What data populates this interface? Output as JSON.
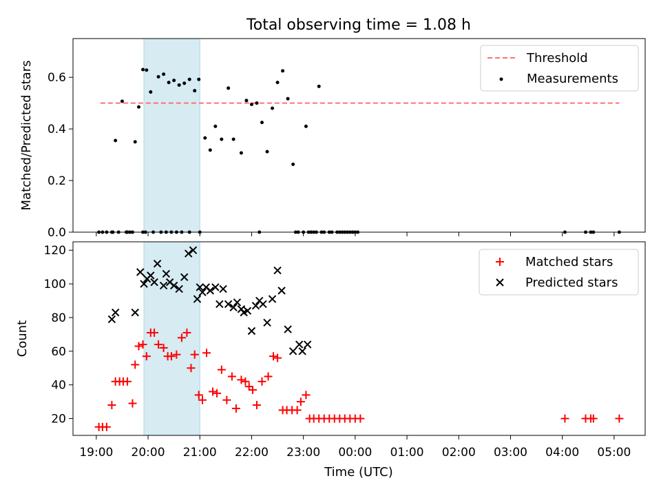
{
  "chart_data": {
    "type": "scatter",
    "title": "Total observing time = 1.08 h",
    "xlabel": "Time (UTC)",
    "x_unit": "hours from 19:00 UTC",
    "xlim": [
      -0.45,
      10.6
    ],
    "xticks": [
      0,
      1,
      2,
      3,
      4,
      5,
      6,
      7,
      8,
      9,
      10
    ],
    "xticklabels": [
      "19:00",
      "20:00",
      "21:00",
      "22:00",
      "23:00",
      "00:00",
      "01:00",
      "02:00",
      "03:00",
      "04:00",
      "05:00"
    ],
    "highlight_span": [
      0.92,
      2.0
    ],
    "colors": {
      "threshold": "#ff7070",
      "measurements": "#000000",
      "matched": "#ff0000",
      "predicted": "#000000",
      "span": "#add8e6"
    },
    "top_panel": {
      "ylabel": "Matched/Predicted stars",
      "ylim": [
        0,
        0.75
      ],
      "yticks": [
        0.0,
        0.2,
        0.4,
        0.6
      ],
      "yticklabels": [
        "0.0",
        "0.2",
        "0.4",
        "0.6"
      ],
      "legend_position": "top-right",
      "threshold": {
        "name": "Threshold",
        "y": 0.5,
        "x_range": [
          0.08,
          10.1
        ]
      },
      "measurements": {
        "name": "Measurements",
        "x": [
          0.05,
          0.12,
          0.2,
          0.3,
          0.37,
          0.5,
          0.58,
          0.65,
          0.75,
          0.82,
          0.9,
          0.97,
          1.05,
          1.2,
          1.3,
          1.4,
          1.5,
          1.6,
          1.7,
          1.8,
          1.9,
          1.98,
          2.1,
          2.2,
          2.3,
          2.42,
          2.55,
          2.65,
          2.8,
          2.9,
          3.0,
          3.1,
          3.2,
          3.3,
          3.4,
          3.5,
          3.6,
          3.7,
          3.8,
          3.9,
          4.05,
          4.3,
          4.8,
          0.32,
          0.43,
          0.9,
          0.95,
          1.1,
          1.25,
          1.35,
          1.45,
          1.55,
          1.65,
          1.8,
          2.0,
          3.15,
          3.85,
          4.0,
          4.1,
          4.2,
          4.35,
          4.5,
          4.65,
          4.75,
          4.85,
          4.95,
          5.05,
          9.05,
          9.45,
          9.55,
          9.6,
          10.1,
          4.15,
          4.25,
          4.4,
          4.55,
          4.7,
          4.9,
          5.0,
          0.6,
          0.7
        ],
        "y": [
          0.0,
          0.0,
          0.0,
          0.0,
          0.355,
          0.507,
          0.0,
          0.0,
          0.35,
          0.485,
          0.63,
          0.628,
          0.543,
          0.602,
          0.612,
          0.58,
          0.588,
          0.57,
          0.577,
          0.592,
          0.548,
          0.592,
          0.365,
          0.318,
          0.41,
          0.36,
          0.558,
          0.36,
          0.307,
          0.51,
          0.495,
          0.5,
          0.425,
          0.312,
          0.48,
          0.58,
          0.625,
          0.517,
          0.263,
          0.0,
          0.41,
          0.565,
          0.0,
          0.0,
          0.0,
          0.0,
          0.0,
          0.0,
          0.0,
          0.0,
          0.0,
          0.0,
          0.0,
          0.0,
          0.0,
          0.0,
          0.0,
          0.0,
          0.0,
          0.0,
          0.0,
          0.0,
          0.0,
          0.0,
          0.0,
          0.0,
          0.0,
          0.0,
          0.0,
          0.0,
          0.0,
          0.0,
          0.0,
          0.0,
          0.0,
          0.0,
          0.0,
          0.0,
          0.0,
          0.0,
          0.0
        ]
      }
    },
    "bottom_panel": {
      "ylabel": "Count",
      "ylim": [
        10,
        125
      ],
      "yticks": [
        20,
        40,
        60,
        80,
        100,
        120
      ],
      "yticklabels": [
        "20",
        "40",
        "60",
        "80",
        "100",
        "120"
      ],
      "legend_position": "top-right",
      "series": [
        {
          "name": "Matched stars",
          "marker": "plus",
          "x": [
            0.05,
            0.12,
            0.2,
            0.3,
            0.37,
            0.45,
            0.52,
            0.6,
            0.7,
            0.75,
            0.82,
            0.9,
            0.97,
            1.05,
            1.12,
            1.2,
            1.3,
            1.38,
            1.45,
            1.55,
            1.65,
            1.75,
            1.83,
            1.9,
            1.98,
            2.05,
            2.13,
            2.25,
            2.33,
            2.42,
            2.52,
            2.62,
            2.7,
            2.8,
            2.88,
            2.95,
            3.02,
            3.1,
            3.2,
            3.32,
            3.42,
            3.5,
            3.6,
            3.68,
            3.78,
            3.88,
            3.95,
            4.05,
            4.12,
            4.2,
            4.3,
            4.4,
            4.5,
            4.6,
            4.7,
            4.8,
            4.9,
            5.0,
            5.1,
            9.05,
            9.45,
            9.55,
            9.6,
            10.1
          ],
          "y": [
            15,
            15,
            15,
            28,
            42,
            42,
            42,
            42,
            29,
            52,
            63,
            64,
            57,
            71,
            71,
            64,
            62,
            57,
            57,
            58,
            68,
            71,
            50,
            58,
            34,
            31,
            59,
            36,
            35,
            49,
            31,
            45,
            26,
            43,
            42,
            39,
            37,
            28,
            42,
            45,
            57,
            56,
            25,
            25,
            25,
            25,
            30,
            34,
            20,
            20,
            20,
            20,
            20,
            20,
            20,
            20,
            20,
            20,
            20,
            20,
            20,
            20,
            20,
            20
          ]
        },
        {
          "name": "Predicted stars",
          "marker": "x",
          "x": [
            0.3,
            0.37,
            0.75,
            0.85,
            0.92,
            0.98,
            1.05,
            1.12,
            1.18,
            1.3,
            1.35,
            1.42,
            1.5,
            1.6,
            1.7,
            1.78,
            1.87,
            1.95,
            2.0,
            2.05,
            2.12,
            2.2,
            2.3,
            2.38,
            2.45,
            2.55,
            2.65,
            2.72,
            2.8,
            2.85,
            2.92,
            3.0,
            3.08,
            3.15,
            3.22,
            3.3,
            3.4,
            3.5,
            3.58,
            3.7,
            3.8,
            3.92,
            3.98,
            4.08
          ],
          "y": [
            79,
            83,
            83,
            107,
            100,
            103,
            105,
            101,
            112,
            99,
            106,
            101,
            99,
            97,
            104,
            118,
            120,
            91,
            98,
            95,
            98,
            96,
            98,
            88,
            97,
            88,
            86,
            89,
            85,
            83,
            84,
            72,
            87,
            90,
            88,
            77,
            91,
            108,
            96,
            73,
            60,
            64,
            60,
            64
          ]
        }
      ]
    }
  }
}
